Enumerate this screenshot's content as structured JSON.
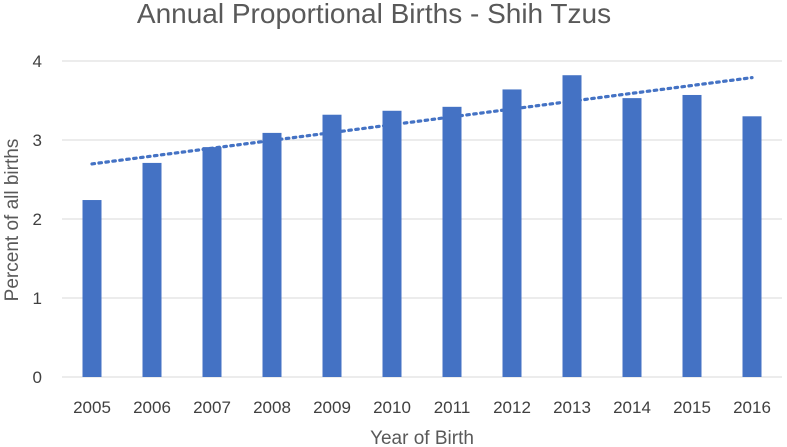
{
  "chart_data": {
    "type": "bar",
    "title": "Annual Proportional Births - Shih Tzus",
    "xlabel": "Year of Birth",
    "ylabel": "Percent of all births",
    "categories": [
      "2005",
      "2006",
      "2007",
      "2008",
      "2009",
      "2010",
      "2011",
      "2012",
      "2013",
      "2014",
      "2015",
      "2016"
    ],
    "values": [
      2.24,
      2.71,
      2.91,
      3.09,
      3.32,
      3.37,
      3.42,
      3.64,
      3.82,
      3.53,
      3.57,
      3.3
    ],
    "ylim": [
      0,
      4
    ],
    "yticks": [
      0,
      1,
      2,
      3,
      4
    ],
    "grid": true,
    "bar_color": "#4472c4",
    "trendline": {
      "type": "linear",
      "style": "dotted",
      "color": "#4472c4"
    }
  }
}
